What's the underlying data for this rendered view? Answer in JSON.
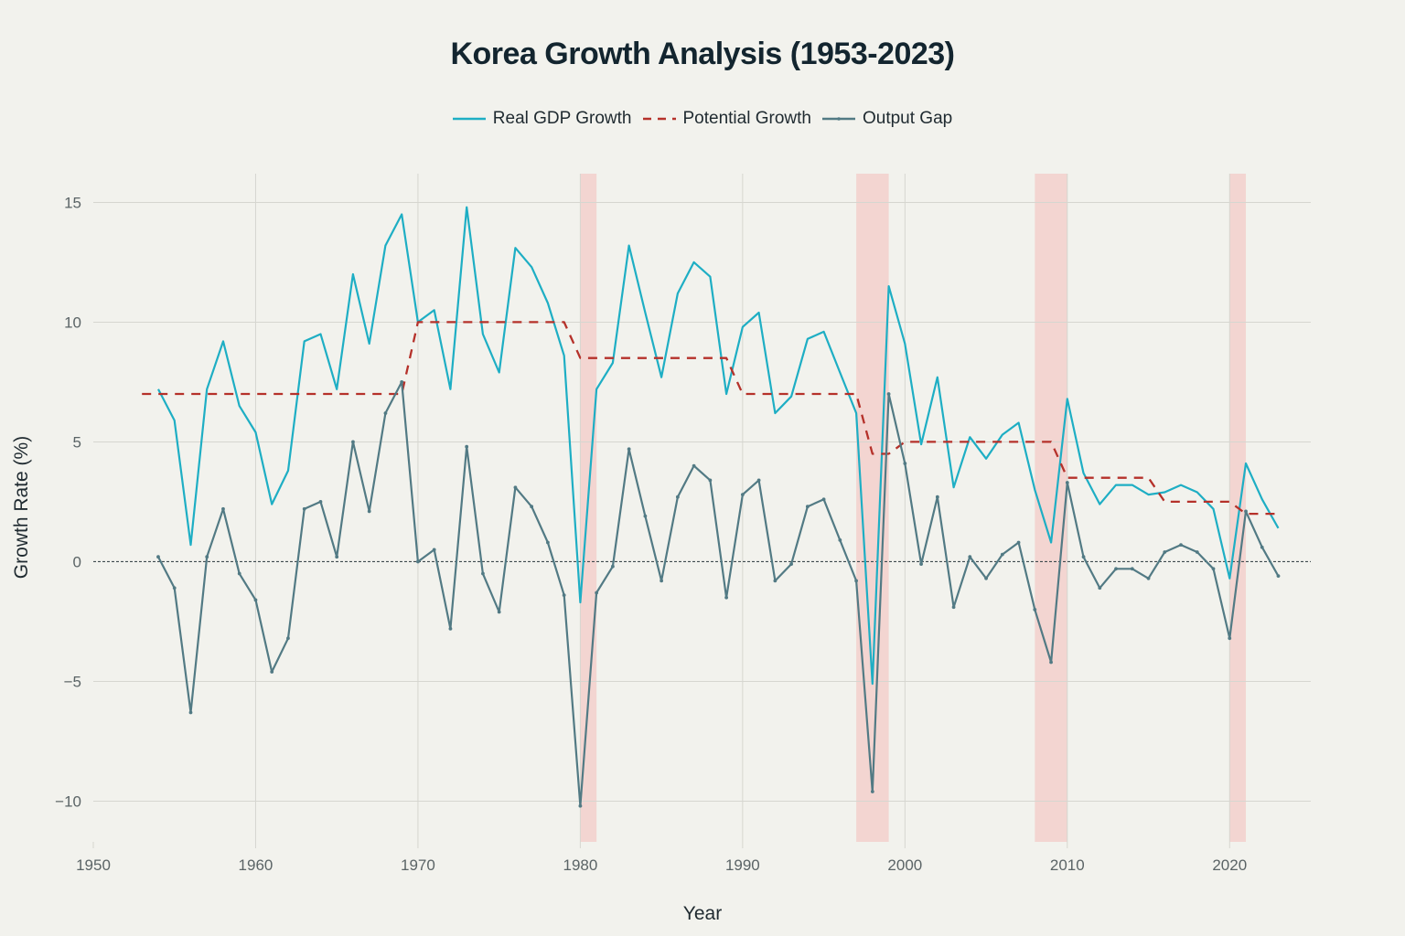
{
  "chart_data": {
    "type": "line",
    "title": "Korea Growth Analysis (1953-2023)",
    "xlabel": "Year",
    "ylabel": "Growth Rate (%)",
    "xlim": [
      1950,
      2025
    ],
    "ylim": [
      -11.7,
      16.2
    ],
    "x_ticks": [
      1950,
      1960,
      1970,
      1980,
      1990,
      2000,
      2010,
      2020
    ],
    "y_ticks": [
      -10,
      -5,
      0,
      5,
      10,
      15
    ],
    "y_tick_labels": [
      "−10",
      "−5",
      "0",
      "5",
      "10",
      "15"
    ],
    "grid": true,
    "legend_position": "top-center",
    "zero_line": true,
    "shaded_periods": [
      {
        "start": 1980,
        "end": 1981
      },
      {
        "start": 1997,
        "end": 1999
      },
      {
        "start": 2008,
        "end": 2010
      },
      {
        "start": 2020,
        "end": 2021
      }
    ],
    "series": [
      {
        "name": "Real GDP Growth",
        "style": "solid",
        "color": "#1eaec4",
        "x": [
          1954,
          1955,
          1956,
          1957,
          1958,
          1959,
          1960,
          1961,
          1962,
          1963,
          1964,
          1965,
          1966,
          1967,
          1968,
          1969,
          1970,
          1971,
          1972,
          1973,
          1974,
          1975,
          1976,
          1977,
          1978,
          1979,
          1980,
          1981,
          1982,
          1983,
          1984,
          1985,
          1986,
          1987,
          1988,
          1989,
          1990,
          1991,
          1992,
          1993,
          1994,
          1995,
          1996,
          1997,
          1998,
          1999,
          2000,
          2001,
          2002,
          2003,
          2004,
          2005,
          2006,
          2007,
          2008,
          2009,
          2010,
          2011,
          2012,
          2013,
          2014,
          2015,
          2016,
          2017,
          2018,
          2019,
          2020,
          2021,
          2022,
          2023
        ],
        "values": [
          7.2,
          5.9,
          0.7,
          7.2,
          9.2,
          6.5,
          5.4,
          2.4,
          3.8,
          9.2,
          9.5,
          7.2,
          12.0,
          9.1,
          13.2,
          14.5,
          10.0,
          10.5,
          7.2,
          14.8,
          9.5,
          7.9,
          13.1,
          12.3,
          10.8,
          8.6,
          -1.7,
          7.2,
          8.3,
          13.2,
          10.4,
          7.7,
          11.2,
          12.5,
          11.9,
          7.0,
          9.8,
          10.4,
          6.2,
          6.9,
          9.3,
          9.6,
          7.9,
          6.2,
          -5.1,
          11.5,
          9.1,
          4.9,
          7.7,
          3.1,
          5.2,
          4.3,
          5.3,
          5.8,
          3.0,
          0.8,
          6.8,
          3.7,
          2.4,
          3.2,
          3.2,
          2.8,
          2.9,
          3.2,
          2.9,
          2.2,
          -0.7,
          4.1,
          2.6,
          1.4
        ]
      },
      {
        "name": "Potential Growth",
        "style": "dashed",
        "color": "#b5312a",
        "x": [
          1953,
          1954,
          1955,
          1956,
          1957,
          1958,
          1959,
          1960,
          1961,
          1962,
          1963,
          1964,
          1965,
          1966,
          1967,
          1968,
          1969,
          1970,
          1971,
          1972,
          1973,
          1974,
          1975,
          1976,
          1977,
          1978,
          1979,
          1980,
          1981,
          1982,
          1983,
          1984,
          1985,
          1986,
          1987,
          1988,
          1989,
          1990,
          1991,
          1992,
          1993,
          1994,
          1995,
          1996,
          1997,
          1998,
          1999,
          2000,
          2001,
          2002,
          2003,
          2004,
          2005,
          2006,
          2007,
          2008,
          2009,
          2010,
          2011,
          2012,
          2013,
          2014,
          2015,
          2016,
          2017,
          2018,
          2019,
          2020,
          2021,
          2022,
          2023
        ],
        "values": [
          7,
          7,
          7,
          7,
          7,
          7,
          7,
          7,
          7,
          7,
          7,
          7,
          7,
          7,
          7,
          7,
          7,
          10,
          10,
          10,
          10,
          10,
          10,
          10,
          10,
          10,
          10,
          8.5,
          8.5,
          8.5,
          8.5,
          8.5,
          8.5,
          8.5,
          8.5,
          8.5,
          8.5,
          7,
          7,
          7,
          7,
          7,
          7,
          7,
          7,
          4.5,
          4.5,
          5,
          5,
          5,
          5,
          5,
          5,
          5,
          5,
          5,
          5,
          3.5,
          3.5,
          3.5,
          3.5,
          3.5,
          3.5,
          2.5,
          2.5,
          2.5,
          2.5,
          2.5,
          2,
          2,
          2
        ]
      },
      {
        "name": "Output Gap",
        "style": "solid-markers",
        "color": "#527a84",
        "x": [
          1954,
          1955,
          1956,
          1957,
          1958,
          1959,
          1960,
          1961,
          1962,
          1963,
          1964,
          1965,
          1966,
          1967,
          1968,
          1969,
          1970,
          1971,
          1972,
          1973,
          1974,
          1975,
          1976,
          1977,
          1978,
          1979,
          1980,
          1981,
          1982,
          1983,
          1984,
          1985,
          1986,
          1987,
          1988,
          1989,
          1990,
          1991,
          1992,
          1993,
          1994,
          1995,
          1996,
          1997,
          1998,
          1999,
          2000,
          2001,
          2002,
          2003,
          2004,
          2005,
          2006,
          2007,
          2008,
          2009,
          2010,
          2011,
          2012,
          2013,
          2014,
          2015,
          2016,
          2017,
          2018,
          2019,
          2020,
          2021,
          2022,
          2023
        ],
        "values": [
          0.2,
          -1.1,
          -6.3,
          0.2,
          2.2,
          -0.5,
          -1.6,
          -4.6,
          -3.2,
          2.2,
          2.5,
          0.2,
          5.0,
          2.1,
          6.2,
          7.5,
          0.0,
          0.5,
          -2.8,
          4.8,
          -0.5,
          -2.1,
          3.1,
          2.3,
          0.8,
          -1.4,
          -10.2,
          -1.3,
          -0.2,
          4.7,
          1.9,
          -0.8,
          2.7,
          4.0,
          3.4,
          -1.5,
          2.8,
          3.4,
          -0.8,
          -0.1,
          2.3,
          2.6,
          0.9,
          -0.8,
          -9.6,
          7.0,
          4.1,
          -0.1,
          2.7,
          -1.9,
          0.2,
          -0.7,
          0.3,
          0.8,
          -2.0,
          -4.2,
          3.3,
          0.2,
          -1.1,
          -0.3,
          -0.3,
          -0.7,
          0.4,
          0.7,
          0.4,
          -0.3,
          -3.2,
          2.1,
          0.6,
          -0.6
        ]
      }
    ]
  },
  "legend": {
    "items": [
      "Real GDP Growth",
      "Potential Growth",
      "Output Gap"
    ]
  }
}
